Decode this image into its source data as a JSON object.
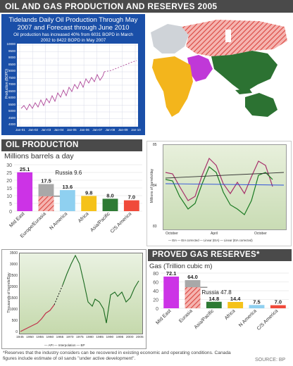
{
  "page_title": "OIL AND GAS PRODUCTION AND RESERVES 2005",
  "source": "SOURCE: BP",
  "footnote": "*Reserves that the industry considers can be recovered in existing economic and operating conditions. Canada figures include estimate of oil sands \"under active development\".",
  "colors": {
    "purple": "#cc33e6",
    "hatch": "#e0554f",
    "grey": "#a8a8a8",
    "lightblue": "#8fd0f0",
    "yellow": "#f5c21a",
    "green": "#2e7a34",
    "red": "#f04a3a",
    "panel_blue": "#1a4fa8"
  },
  "tidelands": {
    "title": "Tidelands Daily Oil Production Through May 2007 and Forecast through June 2010",
    "subtitle": "Oil production has increased 40% from 6031 BOPD in March 2002 to 8422 BOPD in May 2007",
    "ylabel": "Production (BOPD)",
    "yticks": [
      "10000",
      "9500",
      "9000",
      "8500",
      "8000",
      "7500",
      "7000",
      "6500",
      "6000",
      "5500",
      "5000",
      "4500",
      "4000"
    ],
    "xticks": [
      "Jan-01",
      "Jan-02",
      "Jan-03",
      "Jan-04",
      "Jan-05",
      "Jan-06",
      "Jan-07",
      "Jan-08",
      "Jan-09",
      "Jan-10"
    ]
  },
  "oil_production": {
    "header": "OIL PRODUCTION",
    "unit": "Millions barrels a day",
    "russia_label": "Russia 9.6",
    "chart_data": {
      "type": "bar",
      "categories": [
        "Mid East",
        "Europe/Eurasia",
        "N America",
        "Africa",
        "Asia/Pacific",
        "C/S America"
      ],
      "values": [
        25.1,
        17.5,
        13.6,
        9.8,
        8.0,
        7.0
      ],
      "value_labels": [
        "25.1",
        "17.5",
        "13.6",
        "9.8",
        "8.0",
        "7.0"
      ],
      "ylim": [
        0,
        30
      ],
      "yticks": [
        "30",
        "25",
        "20",
        "15",
        "10",
        "5",
        "0"
      ],
      "russia_value": 9.6
    }
  },
  "line_chart_right": {
    "ylabel": "Millions of barrels/day",
    "yticks": [
      "85",
      "84",
      "83"
    ],
    "xticks": [
      "October",
      "April",
      "October"
    ],
    "legend": [
      "EIA",
      "EIA corrected",
      "Linear (EIA)",
      "Linear (EIA corrected)"
    ]
  },
  "historic_chart": {
    "ylabel": "Thousands of barrels/Day",
    "yticks": [
      "3500",
      "3000",
      "2500",
      "2000",
      "1500",
      "1000",
      "500",
      "0"
    ],
    "xticks": [
      "1945",
      "1950",
      "1955",
      "1960",
      "1965",
      "1970",
      "1975",
      "1980",
      "1985",
      "1990",
      "1995",
      "2000",
      "2005"
    ],
    "legend": [
      "API",
      "Interpolation",
      "BP"
    ]
  },
  "gas_reserves": {
    "header": "PROVED GAS RESERVES*",
    "unit": "Gas (Trillion cubic m)",
    "russia_label": "Russia 47.8",
    "chart_data": {
      "type": "bar",
      "categories": [
        "Mid East",
        "Eurasia",
        "Asia/Pacific",
        "Africa",
        "N America",
        "C/S America"
      ],
      "values": [
        72.1,
        64.0,
        14.8,
        14.4,
        7.5,
        7.0
      ],
      "value_labels": [
        "72.1",
        "64.0",
        "14.8",
        "14.4",
        "7.5",
        "7.0"
      ],
      "ylim": [
        0,
        80
      ],
      "yticks": [
        "80",
        "60",
        "40",
        "20",
        "0"
      ],
      "russia_value": 47.8
    }
  }
}
